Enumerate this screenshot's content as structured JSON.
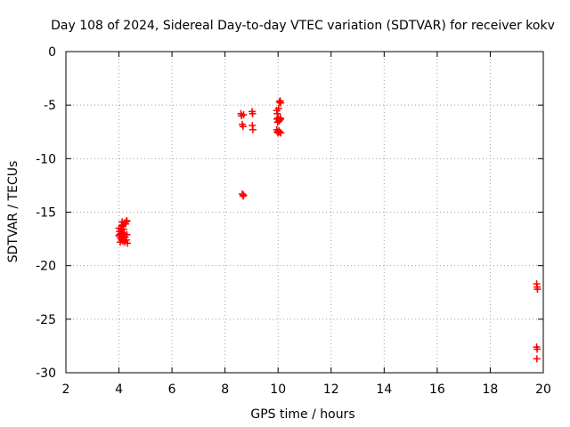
{
  "chart_data": {
    "type": "scatter",
    "title": "Day 108 of 2024, Sidereal Day-to-day VTEC variation (SDTVAR) for receiver kokv",
    "xlabel": "GPS time / hours",
    "ylabel": "SDTVAR / TECUs",
    "xlim": [
      2,
      20
    ],
    "ylim": [
      -30,
      0
    ],
    "xticks": [
      2,
      4,
      6,
      8,
      10,
      12,
      14,
      16,
      18,
      20
    ],
    "yticks": [
      0,
      -5,
      -10,
      -15,
      -20,
      -25,
      -30
    ],
    "grid": true,
    "marker": "+",
    "series": [
      {
        "name": "SDTVAR",
        "color": "#ff0000",
        "points": [
          [
            4.0,
            -16.5
          ],
          [
            4.02,
            -16.8
          ],
          [
            4.03,
            -17.1
          ],
          [
            4.05,
            -17.4
          ],
          [
            4.07,
            -17.0
          ],
          [
            4.08,
            -16.6
          ],
          [
            4.1,
            -16.3
          ],
          [
            4.1,
            -17.6
          ],
          [
            4.12,
            -17.2
          ],
          [
            4.13,
            -16.9
          ],
          [
            4.15,
            -16.2
          ],
          [
            4.15,
            -17.7
          ],
          [
            4.17,
            -17.4
          ],
          [
            4.18,
            -16.6
          ],
          [
            4.2,
            -16.0
          ],
          [
            4.2,
            -17.0
          ],
          [
            4.22,
            -17.8
          ],
          [
            4.23,
            -17.3
          ],
          [
            4.25,
            -16.1
          ],
          [
            4.27,
            -15.9
          ],
          [
            4.28,
            -17.6
          ],
          [
            4.3,
            -15.8
          ],
          [
            4.3,
            -17.1
          ],
          [
            4.32,
            -17.9
          ],
          [
            4.05,
            -17.8
          ],
          [
            4.0,
            -17.2
          ],
          [
            4.12,
            -15.9
          ],
          [
            8.6,
            -5.8
          ],
          [
            8.62,
            -6.0
          ],
          [
            8.65,
            -6.8
          ],
          [
            8.68,
            -7.0
          ],
          [
            8.7,
            -5.9
          ],
          [
            8.65,
            -13.3
          ],
          [
            8.68,
            -13.5
          ],
          [
            8.7,
            -13.4
          ],
          [
            9.02,
            -5.6
          ],
          [
            9.04,
            -5.8
          ],
          [
            9.03,
            -6.9
          ],
          [
            9.05,
            -7.3
          ],
          [
            9.95,
            -5.5
          ],
          [
            9.97,
            -5.8
          ],
          [
            9.96,
            -6.3
          ],
          [
            9.98,
            -6.6
          ],
          [
            9.95,
            -7.3
          ],
          [
            9.97,
            -7.5
          ],
          [
            10.0,
            -7.6
          ],
          [
            10.03,
            -7.4
          ],
          [
            10.05,
            -7.5
          ],
          [
            10.1,
            -7.6
          ],
          [
            10.0,
            -6.2
          ],
          [
            10.03,
            -6.5
          ],
          [
            10.05,
            -6.4
          ],
          [
            10.08,
            -6.2
          ],
          [
            10.1,
            -6.3
          ],
          [
            10.02,
            -5.3
          ],
          [
            10.05,
            -4.7
          ],
          [
            10.08,
            -4.6
          ],
          [
            10.1,
            -4.8
          ],
          [
            19.75,
            -21.7
          ],
          [
            19.77,
            -22.0
          ],
          [
            19.78,
            -22.2
          ],
          [
            19.75,
            -27.6
          ],
          [
            19.77,
            -27.8
          ],
          [
            19.76,
            -28.7
          ]
        ]
      }
    ]
  }
}
